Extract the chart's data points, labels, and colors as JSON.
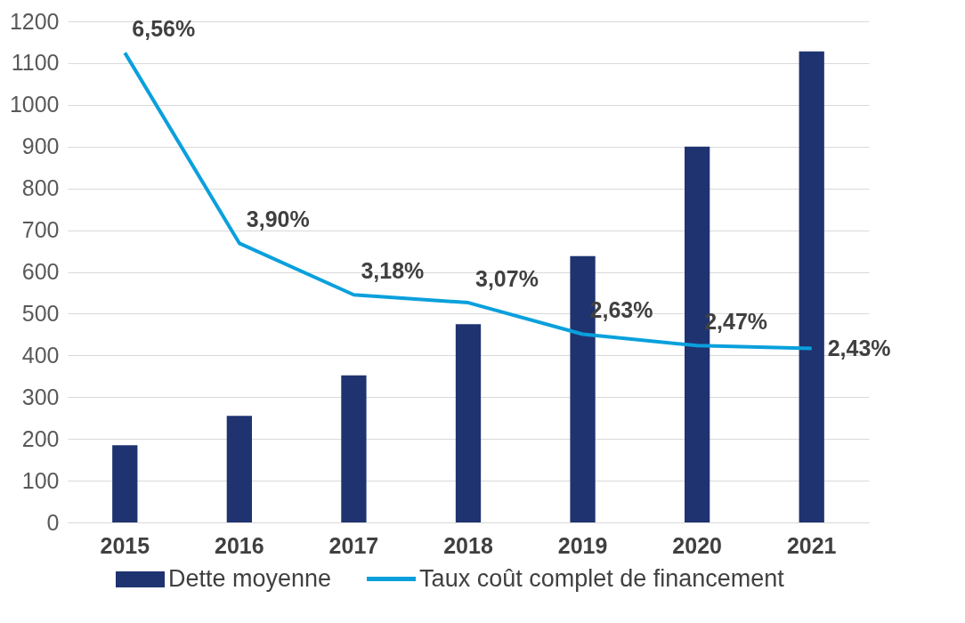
{
  "chart_data": {
    "type": "bar",
    "categories": [
      "2015",
      "2016",
      "2017",
      "2018",
      "2019",
      "2020",
      "2021"
    ],
    "series": [
      {
        "name": "Dette moyenne",
        "color": "#1f3370",
        "values": [
          185,
          255,
          352,
          475,
          638,
          900,
          1128
        ]
      },
      {
        "name": "Taux coût complet de financement",
        "type": "line",
        "axis": "y2",
        "color": "#0aa0dc",
        "values": [
          6.56,
          3.9,
          3.18,
          3.07,
          2.63,
          2.47,
          2.43
        ],
        "value_labels": [
          "6,56%",
          "3,90%",
          "3,18%",
          "3,07%",
          "2,63%",
          "2,47%",
          "2,43%"
        ]
      }
    ],
    "ylim": [
      0,
      1200
    ],
    "yticks": [
      0,
      100,
      200,
      300,
      400,
      500,
      600,
      700,
      800,
      900,
      1000,
      1100,
      1200
    ],
    "y2lim": [
      0,
      7
    ],
    "grid": "y",
    "legend": "bottom"
  }
}
